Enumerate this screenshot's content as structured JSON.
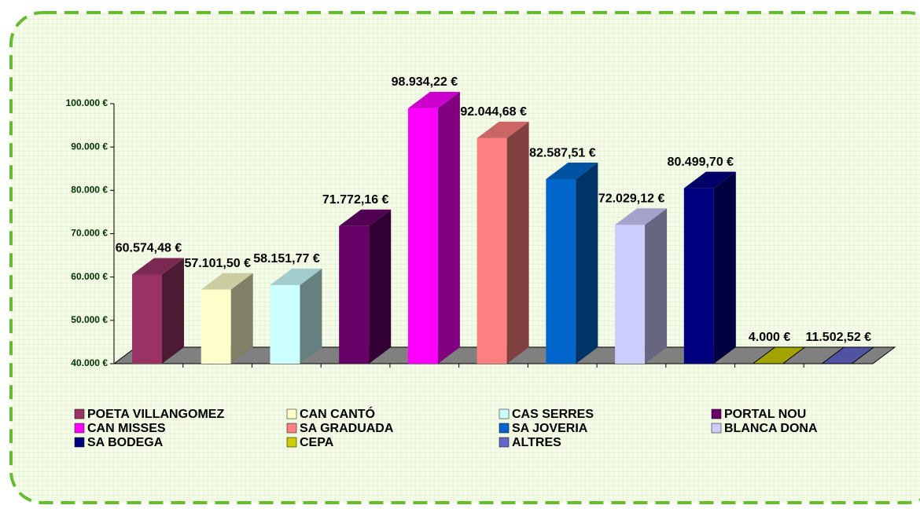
{
  "chart_data": {
    "type": "bar3d",
    "categories": [
      "POETA VILLANGOMEZ",
      "CAN CANTÓ",
      "CAS SERRES",
      "PORTAL NOU",
      "CAN MISSES",
      "SA GRADUADA",
      "SA JOVERIA",
      "BLANCA DONA",
      "SA BODEGA",
      "CEPA",
      "ALTRES"
    ],
    "values": [
      60574.48,
      57101.5,
      58151.77,
      71772.16,
      98934.22,
      92044.68,
      82587.51,
      72029.12,
      80499.7,
      4000,
      11502.52
    ],
    "value_labels": [
      "60.574,48 €",
      "57.101,50 €",
      "58.151,77 €",
      "71.772,16 €",
      "98.934,22 €",
      "92.044,68 €",
      "82.587,51 €",
      "72.029,12 €",
      "80.499,70 €",
      "4.000 €",
      "11.502,52 €"
    ],
    "colors": [
      "#993366",
      "#ffffcc",
      "#ccffff",
      "#660066",
      "#ff00ff",
      "#ff8080",
      "#0066cc",
      "#ccccff",
      "#000080",
      "#cccc00",
      "#6666cc"
    ],
    "ylim": [
      40000,
      100000
    ],
    "yticks": [
      {
        "value": 40000,
        "label": "40.000 €"
      },
      {
        "value": 50000,
        "label": "50.000 €"
      },
      {
        "value": 60000,
        "label": "60.000 €"
      },
      {
        "value": 70000,
        "label": "70.000 €"
      },
      {
        "value": 80000,
        "label": "80.000 €"
      },
      {
        "value": 90000,
        "label": "90.000 €"
      },
      {
        "value": 100000,
        "label": "100.000 €"
      }
    ],
    "legend": "bottom"
  }
}
